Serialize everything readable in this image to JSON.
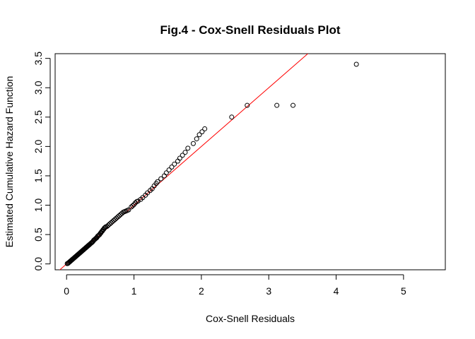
{
  "chart_data": {
    "type": "scatter",
    "title": "Fig.4 - Cox-Snell Residuals Plot",
    "xlabel": "Cox-Snell Residuals",
    "ylabel": "Estimated Cumulative Hazard Function",
    "xlim": [
      -0.17,
      5.62
    ],
    "ylim": [
      -0.1,
      3.58
    ],
    "xticks": [
      "0",
      "1",
      "2",
      "3",
      "4",
      "5"
    ],
    "yticks": [
      "0.0",
      "0.5",
      "1.0",
      "1.5",
      "2.0",
      "2.5",
      "3.0",
      "3.5"
    ],
    "grid": false,
    "legend": "none",
    "point_color": "#000000",
    "reference_line": {
      "intercept": 0,
      "slope": 1,
      "color": "#ff0000"
    },
    "points": [
      [
        0.01,
        0.005
      ],
      [
        0.02,
        0.01
      ],
      [
        0.03,
        0.02
      ],
      [
        0.04,
        0.03
      ],
      [
        0.05,
        0.04
      ],
      [
        0.06,
        0.05
      ],
      [
        0.07,
        0.06
      ],
      [
        0.08,
        0.07
      ],
      [
        0.09,
        0.08
      ],
      [
        0.1,
        0.09
      ],
      [
        0.11,
        0.1
      ],
      [
        0.12,
        0.11
      ],
      [
        0.13,
        0.12
      ],
      [
        0.14,
        0.13
      ],
      [
        0.15,
        0.14
      ],
      [
        0.16,
        0.15
      ],
      [
        0.17,
        0.16
      ],
      [
        0.18,
        0.17
      ],
      [
        0.19,
        0.18
      ],
      [
        0.2,
        0.19
      ],
      [
        0.21,
        0.2
      ],
      [
        0.22,
        0.21
      ],
      [
        0.23,
        0.22
      ],
      [
        0.24,
        0.23
      ],
      [
        0.25,
        0.24
      ],
      [
        0.26,
        0.25
      ],
      [
        0.27,
        0.26
      ],
      [
        0.28,
        0.27
      ],
      [
        0.29,
        0.28
      ],
      [
        0.3,
        0.29
      ],
      [
        0.31,
        0.3
      ],
      [
        0.32,
        0.31
      ],
      [
        0.33,
        0.32
      ],
      [
        0.34,
        0.33
      ],
      [
        0.35,
        0.34
      ],
      [
        0.36,
        0.35
      ],
      [
        0.37,
        0.36
      ],
      [
        0.38,
        0.37
      ],
      [
        0.39,
        0.38
      ],
      [
        0.4,
        0.4
      ],
      [
        0.41,
        0.41
      ],
      [
        0.42,
        0.42
      ],
      [
        0.43,
        0.43
      ],
      [
        0.44,
        0.44
      ],
      [
        0.45,
        0.45
      ],
      [
        0.46,
        0.47
      ],
      [
        0.47,
        0.48
      ],
      [
        0.48,
        0.49
      ],
      [
        0.49,
        0.5
      ],
      [
        0.5,
        0.52
      ],
      [
        0.51,
        0.53
      ],
      [
        0.52,
        0.55
      ],
      [
        0.53,
        0.56
      ],
      [
        0.54,
        0.58
      ],
      [
        0.55,
        0.59
      ],
      [
        0.56,
        0.61
      ],
      [
        0.57,
        0.62
      ],
      [
        0.58,
        0.63
      ],
      [
        0.6,
        0.64
      ],
      [
        0.62,
        0.66
      ],
      [
        0.64,
        0.68
      ],
      [
        0.66,
        0.7
      ],
      [
        0.68,
        0.72
      ],
      [
        0.7,
        0.74
      ],
      [
        0.72,
        0.76
      ],
      [
        0.74,
        0.78
      ],
      [
        0.76,
        0.8
      ],
      [
        0.78,
        0.82
      ],
      [
        0.8,
        0.84
      ],
      [
        0.82,
        0.86
      ],
      [
        0.84,
        0.88
      ],
      [
        0.86,
        0.89
      ],
      [
        0.88,
        0.9
      ],
      [
        0.9,
        0.91
      ],
      [
        0.92,
        0.92
      ],
      [
        0.96,
        0.97
      ],
      [
        0.98,
        0.99
      ],
      [
        1.0,
        1.01
      ],
      [
        1.02,
        1.04
      ],
      [
        1.04,
        1.06
      ],
      [
        1.06,
        1.07
      ],
      [
        1.1,
        1.1
      ],
      [
        1.13,
        1.13
      ],
      [
        1.17,
        1.17
      ],
      [
        1.2,
        1.21
      ],
      [
        1.24,
        1.25
      ],
      [
        1.27,
        1.28
      ],
      [
        1.3,
        1.33
      ],
      [
        1.33,
        1.37
      ],
      [
        1.35,
        1.4
      ],
      [
        1.4,
        1.45
      ],
      [
        1.45,
        1.5
      ],
      [
        1.48,
        1.55
      ],
      [
        1.52,
        1.6
      ],
      [
        1.56,
        1.65
      ],
      [
        1.6,
        1.7
      ],
      [
        1.65,
        1.75
      ],
      [
        1.68,
        1.8
      ],
      [
        1.72,
        1.85
      ],
      [
        1.76,
        1.9
      ],
      [
        1.8,
        1.97
      ],
      [
        1.88,
        2.05
      ],
      [
        1.93,
        2.13
      ],
      [
        1.97,
        2.2
      ],
      [
        2.01,
        2.25
      ],
      [
        2.05,
        2.3
      ],
      [
        2.45,
        2.5
      ],
      [
        2.68,
        2.7
      ],
      [
        3.12,
        2.7
      ],
      [
        3.36,
        2.7
      ],
      [
        4.3,
        3.4
      ]
    ]
  }
}
